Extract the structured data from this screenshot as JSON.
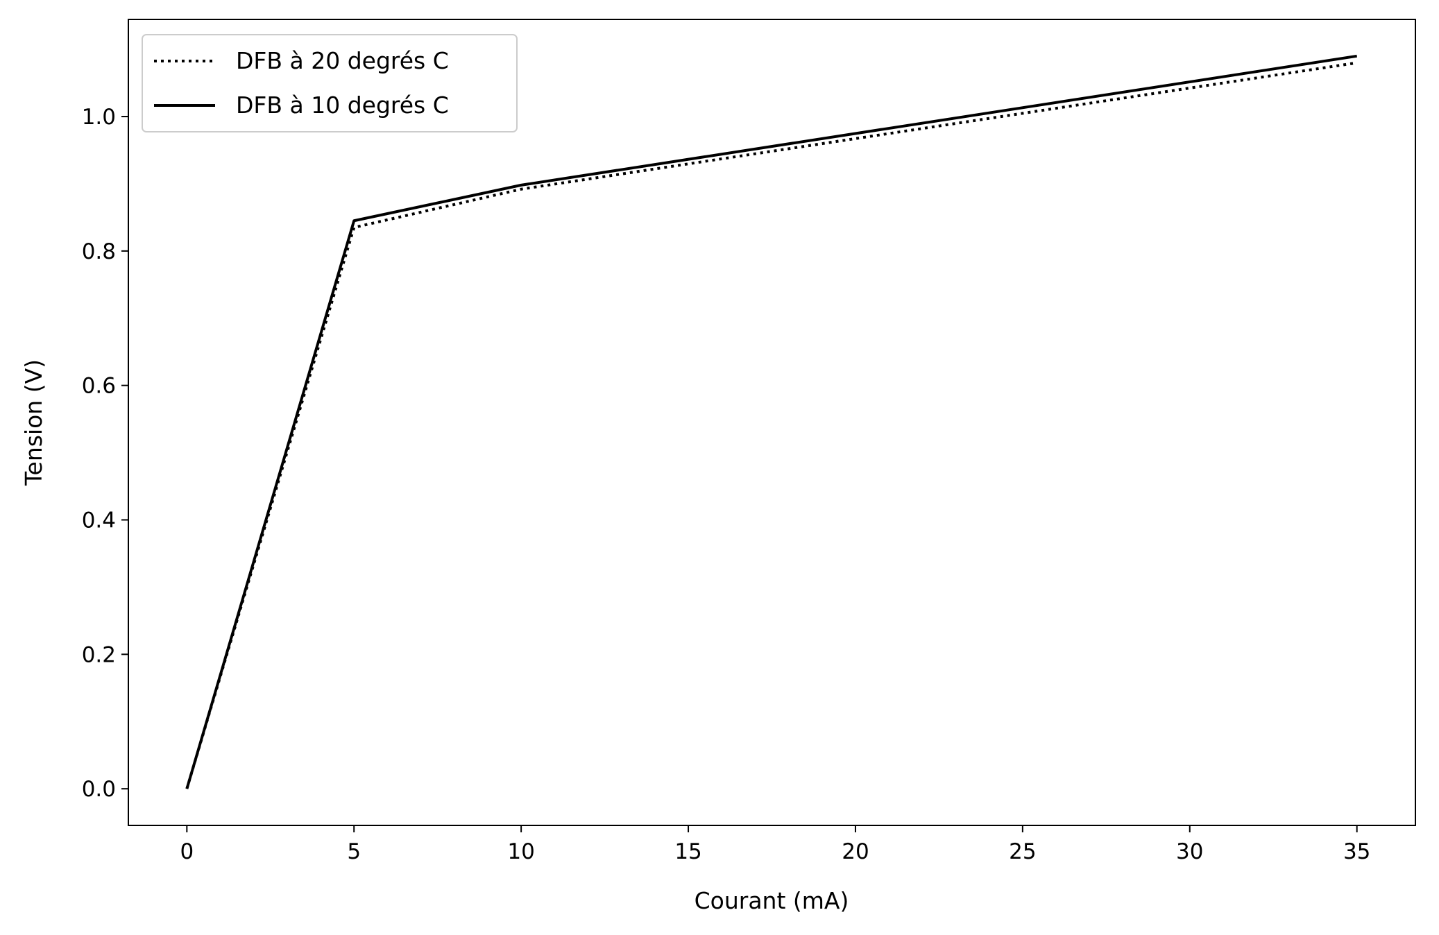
{
  "chart_data": {
    "type": "line",
    "title": "",
    "xlabel": "Courant (mA)",
    "ylabel": "Tension (V)",
    "x": [
      0,
      5,
      10,
      35
    ],
    "xlim": [
      -1.75,
      36.75
    ],
    "ylim": [
      -0.0545,
      1.1445
    ],
    "xticks": [
      0,
      5,
      10,
      15,
      20,
      25,
      30,
      35
    ],
    "xtick_labels": [
      "0",
      "5",
      "10",
      "15",
      "20",
      "25",
      "30",
      "35"
    ],
    "yticks": [
      0.0,
      0.2,
      0.4,
      0.6,
      0.8,
      1.0
    ],
    "ytick_labels": [
      "0.0",
      "0.2",
      "0.4",
      "0.6",
      "0.8",
      "1.0"
    ],
    "grid": false,
    "legend_position": "top-left",
    "series": [
      {
        "name": "DFB à 20 degrés C",
        "style": "dotted",
        "color": "#000000",
        "values": [
          0.0,
          0.835,
          0.892,
          1.08
        ]
      },
      {
        "name": "DFB à 10 degrés C",
        "style": "solid",
        "color": "#000000",
        "values": [
          0.0,
          0.845,
          0.898,
          1.09
        ]
      }
    ]
  }
}
